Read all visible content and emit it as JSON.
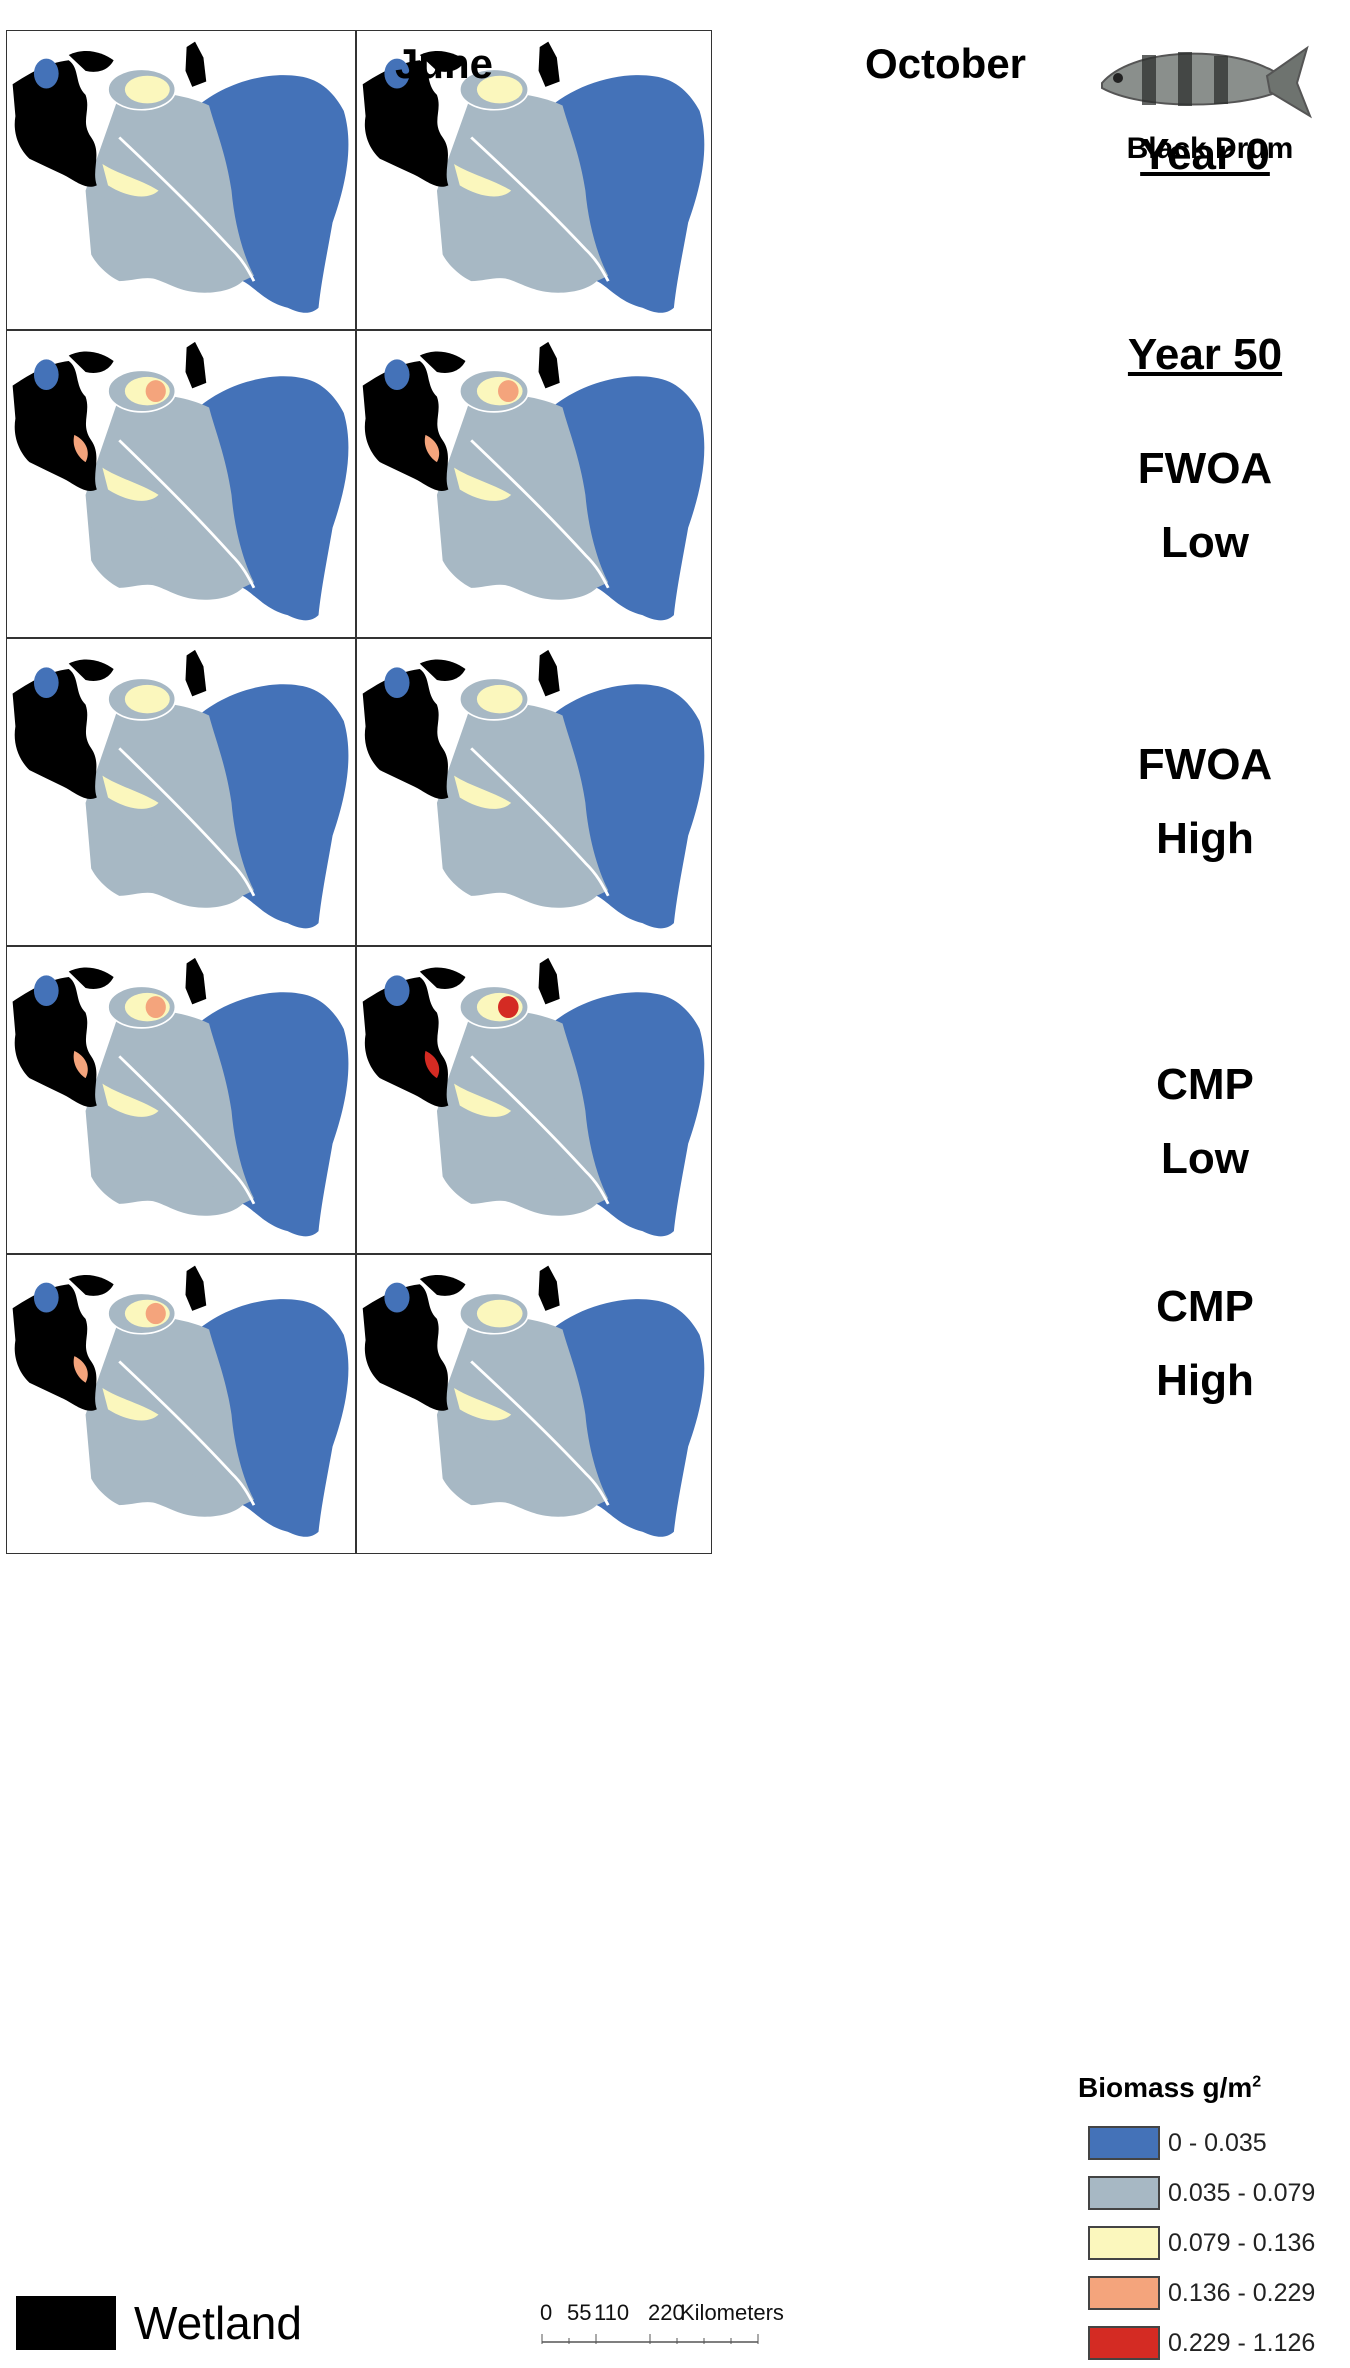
{
  "months": {
    "june": "June",
    "october": "October"
  },
  "species": "Black Drum",
  "scenarios": [
    {
      "line1": "Year 0",
      "line2": "",
      "underlined": true
    },
    {
      "line1": "Year 50",
      "line2": "",
      "underlined": true
    },
    {
      "line1": "FWOA",
      "line2": "Low",
      "underlined": false
    },
    {
      "line1": "FWOA",
      "line2": "High",
      "underlined": false
    },
    {
      "line1": "CMP",
      "line2": "Low",
      "underlined": false
    },
    {
      "line1": "CMP",
      "line2": "High",
      "underlined": false
    }
  ],
  "legend": {
    "title": "Biomass g/m",
    "title_sup": "2",
    "classes": [
      {
        "label": "0 - 0.035",
        "color": "#4472b8"
      },
      {
        "label": "0.035 - 0.079",
        "color": "#a7b8c4"
      },
      {
        "label": "0.079 - 0.136",
        "color": "#fbf7bd"
      },
      {
        "label": "0.136 - 0.229",
        "color": "#f4a47c"
      },
      {
        "label": "0.229 - 1.126",
        "color": "#d42b23"
      }
    ]
  },
  "wetland_label": "Wetland",
  "wetland_color": "#000000",
  "scale_bar": {
    "ticks": [
      "0",
      "55",
      "110",
      "220"
    ],
    "unit": "Kilometers"
  },
  "maps": [
    {
      "scenario": "Year 0",
      "month": "June"
    },
    {
      "scenario": "Year 0",
      "month": "October"
    },
    {
      "scenario": "FWOA Low",
      "month": "June"
    },
    {
      "scenario": "FWOA Low",
      "month": "October"
    },
    {
      "scenario": "FWOA High",
      "month": "June"
    },
    {
      "scenario": "FWOA High",
      "month": "October"
    },
    {
      "scenario": "CMP Low",
      "month": "June"
    },
    {
      "scenario": "CMP Low",
      "month": "October"
    },
    {
      "scenario": "CMP High",
      "month": "June"
    },
    {
      "scenario": "CMP High",
      "month": "October"
    }
  ]
}
